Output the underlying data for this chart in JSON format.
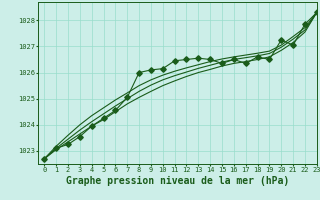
{
  "background_color": "#cceee8",
  "plot_bg_color": "#cceee8",
  "grid_color": "#99ddcc",
  "line_color": "#1a5c1a",
  "title": "Graphe pression niveau de la mer (hPa)",
  "xlim": [
    -0.5,
    23
  ],
  "ylim": [
    1022.5,
    1028.7
  ],
  "yticks": [
    1023,
    1024,
    1025,
    1026,
    1027,
    1028
  ],
  "xticks": [
    0,
    1,
    2,
    3,
    4,
    5,
    6,
    7,
    8,
    9,
    10,
    11,
    12,
    13,
    14,
    15,
    16,
    17,
    18,
    19,
    20,
    21,
    22,
    23
  ],
  "xtick_labels": [
    "0",
    "1",
    "2",
    "3",
    "4",
    "5",
    "6",
    "7",
    "8",
    "9",
    "10",
    "11",
    "12",
    "13",
    "14",
    "15",
    "16",
    "17",
    "18",
    "19",
    "20",
    "21",
    "22",
    "23"
  ],
  "main_series": [
    1022.7,
    1023.1,
    1023.25,
    1023.55,
    1023.95,
    1024.25,
    1024.55,
    1025.05,
    1026.0,
    1026.1,
    1026.15,
    1026.45,
    1026.5,
    1026.55,
    1026.5,
    1026.35,
    1026.5,
    1026.35,
    1026.6,
    1026.5,
    1027.25,
    1027.05,
    1027.85,
    1028.3
  ],
  "smooth_line1": [
    1022.7,
    1023.05,
    1023.35,
    1023.65,
    1023.95,
    1024.2,
    1024.5,
    1024.8,
    1025.05,
    1025.28,
    1025.5,
    1025.68,
    1025.85,
    1026.0,
    1026.12,
    1026.25,
    1026.35,
    1026.42,
    1026.5,
    1026.6,
    1026.85,
    1027.15,
    1027.55,
    1028.3
  ],
  "smooth_line2": [
    1022.7,
    1023.1,
    1023.45,
    1023.8,
    1024.12,
    1024.42,
    1024.72,
    1025.0,
    1025.28,
    1025.52,
    1025.72,
    1025.88,
    1026.02,
    1026.16,
    1026.28,
    1026.4,
    1026.5,
    1026.57,
    1026.64,
    1026.73,
    1026.97,
    1027.28,
    1027.63,
    1028.3
  ],
  "smooth_line3": [
    1022.7,
    1023.18,
    1023.6,
    1024.0,
    1024.35,
    1024.65,
    1024.95,
    1025.22,
    1025.5,
    1025.72,
    1025.9,
    1026.05,
    1026.18,
    1026.3,
    1026.42,
    1026.52,
    1026.6,
    1026.67,
    1026.74,
    1026.82,
    1027.05,
    1027.38,
    1027.72,
    1028.3
  ],
  "marker": "D",
  "marker_size": 2.8,
  "linewidth": 0.8,
  "title_fontsize": 7,
  "tick_fontsize": 5.0
}
